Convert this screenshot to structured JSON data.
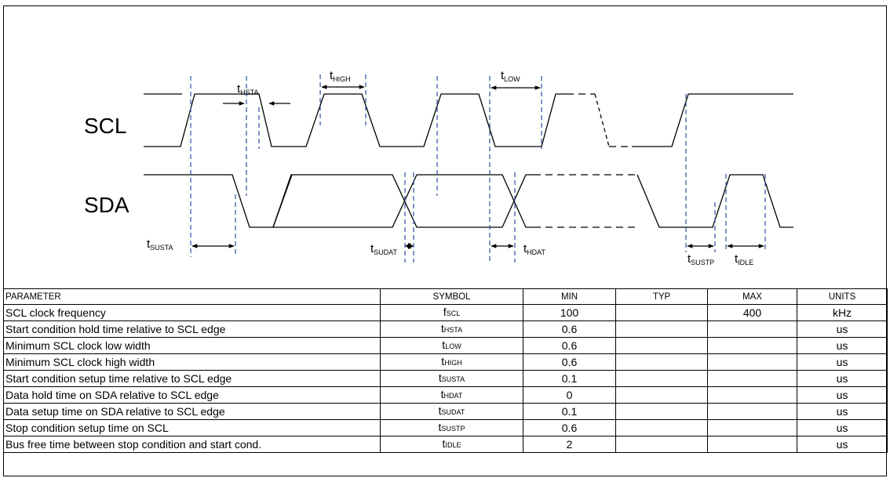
{
  "diagram": {
    "signals": {
      "scl": "SCL",
      "sda": "SDA"
    },
    "labels": [
      {
        "id": "hsta",
        "t": "t",
        "sub": "HSTA"
      },
      {
        "id": "high",
        "t": "t",
        "sub": "HIGH"
      },
      {
        "id": "low",
        "t": "t",
        "sub": "LOW"
      },
      {
        "id": "susta",
        "t": "t",
        "sub": "SUSTA"
      },
      {
        "id": "sudat",
        "t": "t",
        "sub": "SUDAT"
      },
      {
        "id": "hdat",
        "t": "t",
        "sub": "HDAT"
      },
      {
        "id": "sustp",
        "t": "t",
        "sub": "SUSTP"
      },
      {
        "id": "idle",
        "t": "t",
        "sub": "IDLE"
      }
    ],
    "colors": {
      "guide": "#2c4fa3",
      "wave": "#000000"
    }
  },
  "table": {
    "headers": [
      "PARAMETER",
      "SYMBOL",
      "MIN",
      "TYP",
      "MAX",
      "UNITS"
    ],
    "rows": [
      {
        "parameter": "SCL clock frequency",
        "sym_main": "f",
        "sym_sub": "SCL",
        "min": "100",
        "typ": "",
        "max": "400",
        "units": "kHz"
      },
      {
        "parameter": "Start condition hold time relative to SCL edge",
        "sym_main": "t",
        "sym_sub": "HSTA",
        "min": "0.6",
        "typ": "",
        "max": "",
        "units": "us"
      },
      {
        "parameter": "Minimum SCL clock low width",
        "sym_main": "t",
        "sym_sub": "LOW",
        "min": "0.6",
        "typ": "",
        "max": "",
        "units": "us"
      },
      {
        "parameter": "Minimum SCL clock high width",
        "sym_main": "t",
        "sym_sub": "HIGH",
        "min": "0.6",
        "typ": "",
        "max": "",
        "units": "us"
      },
      {
        "parameter": "Start condition setup time relative to SCL edge",
        "sym_main": "t",
        "sym_sub": "SUSTA",
        "min": "0.1",
        "typ": "",
        "max": "",
        "units": "us"
      },
      {
        "parameter": "Data hold time on SDA relative to SCL edge",
        "sym_main": "t",
        "sym_sub": "HDAT",
        "min": "0",
        "typ": "",
        "max": "",
        "units": "us"
      },
      {
        "parameter": "Data setup time on SDA relative to SCL edge",
        "sym_main": "t",
        "sym_sub": "SUDAT",
        "min": "0.1",
        "typ": "",
        "max": "",
        "units": "us"
      },
      {
        "parameter": "Stop condition setup time on SCL",
        "sym_main": "t",
        "sym_sub": "SUSTP",
        "min": "0.6",
        "typ": "",
        "max": "",
        "units": "us"
      },
      {
        "parameter": "Bus free time between stop condition and start cond.",
        "sym_main": "t",
        "sym_sub": "IDLE",
        "min": "2",
        "typ": "",
        "max": "",
        "units": "us"
      }
    ]
  }
}
